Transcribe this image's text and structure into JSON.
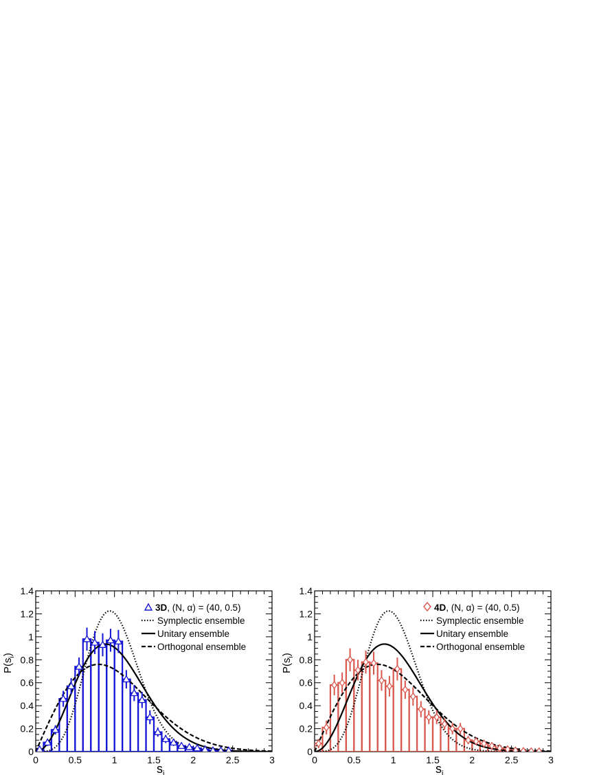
{
  "chart_data": [
    {
      "type": "histogram",
      "panel": "left",
      "xlabel_main": "s",
      "xlabel_sub": "i",
      "ylabel_main": "P(s",
      "ylabel_sub": "i",
      "ylabel_close": ")",
      "xlim": [
        0,
        3
      ],
      "ylim": [
        0,
        1.4
      ],
      "x_ticks": [
        "0",
        "0.5",
        "1",
        "1.5",
        "2",
        "2.5",
        "3"
      ],
      "y_ticks": [
        "0",
        "0.2",
        "0.4",
        "0.6",
        "0.8",
        "1",
        "1.2",
        "1.4"
      ],
      "color": "#1515d6",
      "marker": "triangle",
      "legend": {
        "data_bold": "3D",
        "data_rest": ", (N, α) = (40, 0.5)",
        "entries": [
          "Symplectic ensemble",
          "Unitary ensemble",
          "Orthogonal ensemble"
        ]
      },
      "bin_width": 0.1,
      "bins": [
        0.0,
        0.1,
        0.2,
        0.3,
        0.4,
        0.5,
        0.6,
        0.7,
        0.8,
        0.9,
        1.0,
        1.1,
        1.2,
        1.3,
        1.4,
        1.5,
        1.6,
        1.7,
        1.8,
        1.9,
        2.0,
        2.1,
        2.2,
        2.3,
        2.4
      ],
      "values": [
        0.02,
        0.08,
        0.19,
        0.46,
        0.57,
        0.74,
        0.98,
        0.95,
        0.93,
        0.97,
        0.96,
        0.63,
        0.51,
        0.45,
        0.3,
        0.17,
        0.11,
        0.08,
        0.05,
        0.04,
        0.03,
        0.02,
        0.01,
        0.01,
        0.01
      ],
      "errors": [
        0.02,
        0.03,
        0.04,
        0.07,
        0.07,
        0.08,
        0.1,
        0.1,
        0.1,
        0.1,
        0.1,
        0.08,
        0.07,
        0.07,
        0.06,
        0.04,
        0.035,
        0.03,
        0.025,
        0.02,
        0.02,
        0.015,
        0.01,
        0.01,
        0.01
      ]
    },
    {
      "type": "histogram",
      "panel": "right",
      "xlabel_main": "s",
      "xlabel_sub": "i",
      "ylabel_main": "P(s",
      "ylabel_sub": "i",
      "ylabel_close": ")",
      "xlim": [
        0,
        3
      ],
      "ylim": [
        0,
        1.4
      ],
      "x_ticks": [
        "0",
        "0.5",
        "1",
        "1.5",
        "2",
        "2.5",
        "3"
      ],
      "y_ticks": [
        "0",
        "0.2",
        "0.4",
        "0.6",
        "0.8",
        "1",
        "1.2",
        "1.4"
      ],
      "color": "#d9584e",
      "marker": "diamond",
      "legend": {
        "data_bold": "4D",
        "data_rest": ", (N, α) = (40, 0.5)",
        "entries": [
          "Symplectic ensemble",
          "Unitary ensemble",
          "Orthogonal ensemble"
        ]
      },
      "bin_width": 0.1,
      "bins": [
        0.0,
        0.1,
        0.2,
        0.3,
        0.4,
        0.5,
        0.6,
        0.7,
        0.8,
        0.9,
        1.0,
        1.1,
        1.2,
        1.3,
        1.4,
        1.5,
        1.6,
        1.7,
        1.8,
        1.9,
        2.0,
        2.1,
        2.2,
        2.3,
        2.4,
        2.5,
        2.6,
        2.7,
        2.8
      ],
      "values": [
        0.07,
        0.21,
        0.58,
        0.6,
        0.8,
        0.71,
        0.78,
        0.77,
        0.62,
        0.57,
        0.72,
        0.54,
        0.48,
        0.37,
        0.3,
        0.3,
        0.24,
        0.2,
        0.2,
        0.1,
        0.09,
        0.07,
        0.05,
        0.03,
        0.02,
        0.01,
        0.005,
        0.003,
        0.002
      ],
      "errors": [
        0.04,
        0.06,
        0.09,
        0.09,
        0.1,
        0.09,
        0.1,
        0.1,
        0.09,
        0.09,
        0.1,
        0.08,
        0.08,
        0.07,
        0.06,
        0.06,
        0.05,
        0.05,
        0.05,
        0.035,
        0.03,
        0.03,
        0.02,
        0.02,
        0.015,
        0.01,
        0.005,
        0.005,
        0.005
      ]
    }
  ]
}
